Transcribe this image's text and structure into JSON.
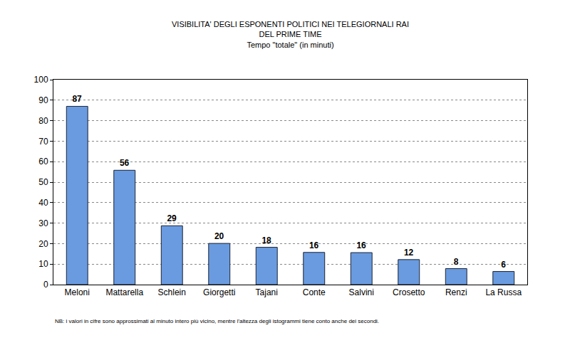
{
  "chart_data": {
    "type": "bar",
    "title": [
      "VISIBILITA' DEGLI ESPONENTI POLITICI NEI TELEGIORNALI RAI",
      "DEL PRIME TIME"
    ],
    "subtitle": "Tempo \"totale\" (in minuti)",
    "categories": [
      "Meloni",
      "Mattarella",
      "Schlein",
      "Giorgetti",
      "Tajani",
      "Conte",
      "Salvini",
      "Crosetto",
      "Renzi",
      "La Russa"
    ],
    "values": [
      87.0,
      55.8,
      28.7,
      20.1,
      18.2,
      15.7,
      15.6,
      12.2,
      7.8,
      6.4
    ],
    "value_labels": [
      "87",
      "56",
      "29",
      "20",
      "18",
      "16",
      "16",
      "12",
      "8",
      "6"
    ],
    "data_labels": true,
    "color": "#6a9be0",
    "ylim": [
      0,
      100
    ],
    "yticks": [
      0,
      10,
      20,
      30,
      40,
      50,
      60,
      70,
      80,
      90,
      100
    ],
    "grid": true,
    "annotations": [
      "NB: i valori in cifre sono approssimati al minuto intero più vicino, mentre l'altezza degli istogrammi tiene conto anche dei secondi."
    ]
  }
}
